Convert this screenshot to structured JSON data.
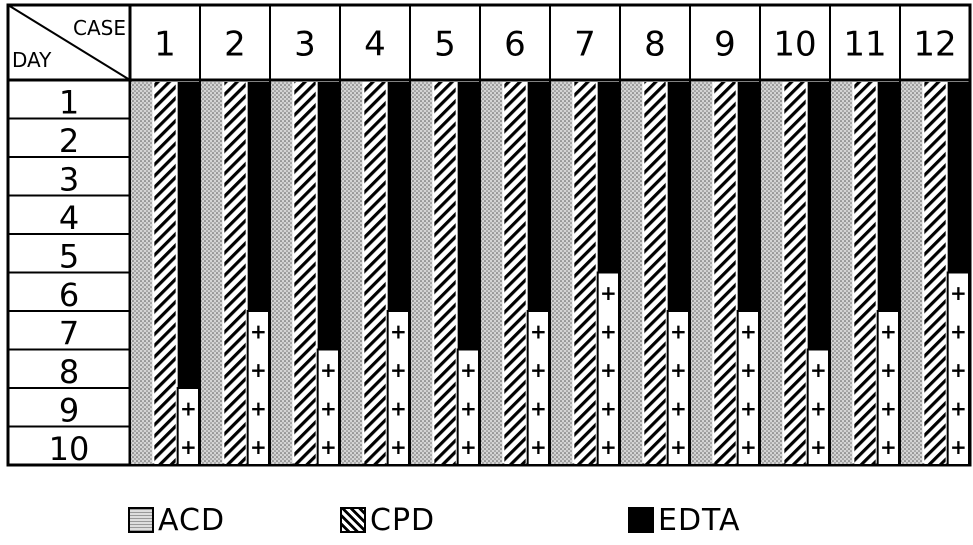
{
  "chart_data": {
    "type": "bar",
    "row_axis_label": "DAY",
    "column_axis_label": "CASE",
    "days": [
      "1",
      "2",
      "3",
      "4",
      "5",
      "6",
      "7",
      "8",
      "9",
      "10"
    ],
    "cases": [
      "1",
      "2",
      "3",
      "4",
      "5",
      "6",
      "7",
      "8",
      "9",
      "10",
      "11",
      "12"
    ],
    "series": [
      {
        "name": "ACD",
        "pattern": "stipple",
        "positive_from_day": []
      },
      {
        "name": "CPD",
        "pattern": "diagonal-hatch",
        "positive_from_day": []
      },
      {
        "name": "EDTA",
        "pattern": "solid-black",
        "positive_from_day": [
          9,
          7,
          8,
          7,
          8,
          7,
          6,
          7,
          7,
          8,
          7,
          6
        ]
      }
    ],
    "positive_marker": "+",
    "colors": {
      "ink": "#000000",
      "paper": "#ffffff",
      "stipple": "#b8b8b8"
    }
  },
  "legend": [
    {
      "key": "acd",
      "label": "ACD"
    },
    {
      "key": "cpd",
      "label": "CPD"
    },
    {
      "key": "edta",
      "label": "EDTA"
    }
  ]
}
